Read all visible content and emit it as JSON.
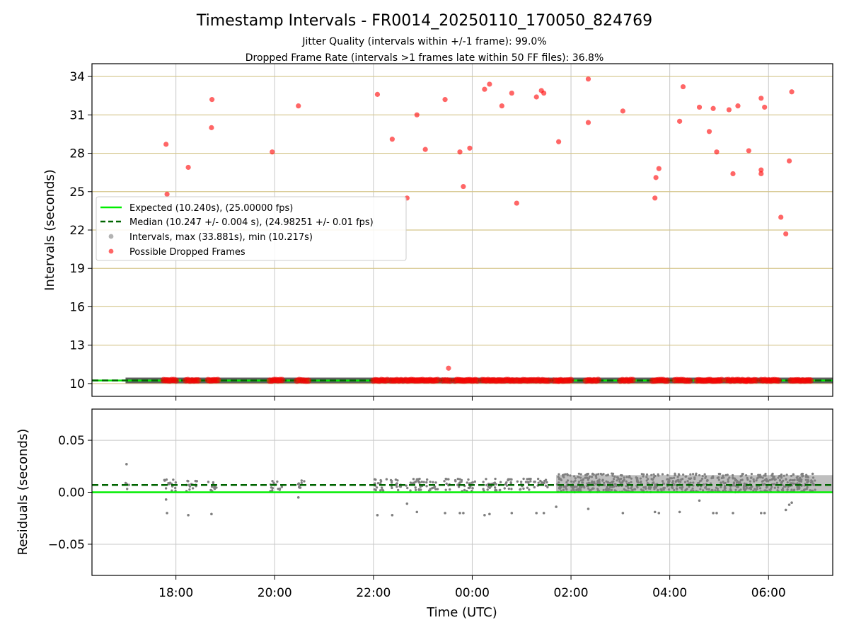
{
  "figure": {
    "title": "Timestamp Intervals - FR0014_20250110_170050_824769",
    "subtitle1": "Jitter Quality (intervals within +/-1 frame): 99.0%",
    "subtitle2": "Dropped Frame Rate (intervals >1 frames late within 50 FF files): 36.8%"
  },
  "chart_data": [
    {
      "type": "scatter",
      "panel": "intervals",
      "ylabel": "Intervals (seconds)",
      "xlabel": "",
      "x_unit": "hours (UTC), continuing past midnight",
      "xlim": [
        16.3,
        31.3
      ],
      "ylim": [
        9.0,
        35.0
      ],
      "yticks": [
        10,
        13,
        16,
        19,
        22,
        25,
        28,
        31,
        34
      ],
      "yticks_labels": [
        "10",
        "13",
        "16",
        "19",
        "22",
        "25",
        "28",
        "31",
        "34"
      ],
      "xticks": [
        18,
        20,
        22,
        24,
        26,
        28,
        30
      ],
      "grid": true,
      "colors": {
        "expected": "#00ee00",
        "median": "#006400",
        "intervals": "#808080",
        "dropped": "#ff0000"
      },
      "legend": {
        "placement": "center-left",
        "entries": [
          "Expected (10.240s), (25.00000 fps)",
          "Median (10.247 +/- 0.004 s), (24.98251 +/- 0.01 fps)",
          "Intervals, max (33.881s), min (10.217s)",
          "Possible Dropped Frames"
        ]
      },
      "expected_line": 10.24,
      "median_line": 10.247,
      "interval_band": {
        "x_start": 16.98,
        "x_end": 31.3,
        "y": 10.247
      },
      "dropped_clusters": [
        [
          17.75,
          18.0
        ],
        [
          18.2,
          18.45
        ],
        [
          18.65,
          18.85
        ],
        [
          19.9,
          20.15
        ],
        [
          20.45,
          20.68
        ],
        [
          22.0,
          22.28
        ],
        [
          22.35,
          22.6
        ],
        [
          22.65,
          23.3
        ],
        [
          23.4,
          23.55
        ],
        [
          23.65,
          24.1
        ],
        [
          24.2,
          24.6
        ],
        [
          24.65,
          24.85
        ],
        [
          24.9,
          25.2
        ],
        [
          25.25,
          25.55
        ],
        [
          25.65,
          25.75
        ],
        [
          25.75,
          26.0
        ],
        [
          26.3,
          26.55
        ],
        [
          27.0,
          27.25
        ],
        [
          27.65,
          27.95
        ],
        [
          28.1,
          28.4
        ],
        [
          28.55,
          29.05
        ],
        [
          29.15,
          29.55
        ],
        [
          29.55,
          29.75
        ],
        [
          29.85,
          30.2
        ],
        [
          30.45,
          30.85
        ]
      ],
      "dropped_points": [
        [
          17.8,
          28.7
        ],
        [
          17.82,
          24.8
        ],
        [
          18.25,
          26.9
        ],
        [
          18.72,
          30.0
        ],
        [
          18.73,
          32.2
        ],
        [
          19.95,
          28.1
        ],
        [
          20.48,
          31.7
        ],
        [
          22.08,
          32.6
        ],
        [
          22.38,
          29.1
        ],
        [
          22.68,
          24.5
        ],
        [
          22.88,
          31.0
        ],
        [
          23.05,
          28.3
        ],
        [
          23.45,
          32.2
        ],
        [
          23.52,
          11.2
        ],
        [
          23.75,
          28.1
        ],
        [
          23.82,
          25.4
        ],
        [
          23.95,
          28.4
        ],
        [
          24.25,
          33.0
        ],
        [
          24.35,
          33.4
        ],
        [
          24.6,
          31.7
        ],
        [
          24.8,
          32.7
        ],
        [
          24.9,
          24.1
        ],
        [
          25.3,
          32.4
        ],
        [
          25.4,
          32.9
        ],
        [
          25.45,
          32.7
        ],
        [
          25.75,
          28.9
        ],
        [
          26.35,
          33.8
        ],
        [
          26.35,
          30.4
        ],
        [
          27.05,
          31.3
        ],
        [
          27.7,
          24.5
        ],
        [
          27.72,
          26.1
        ],
        [
          27.78,
          26.8
        ],
        [
          28.2,
          30.5
        ],
        [
          28.27,
          33.2
        ],
        [
          28.6,
          31.6
        ],
        [
          28.8,
          29.7
        ],
        [
          28.88,
          31.5
        ],
        [
          28.95,
          28.1
        ],
        [
          29.2,
          31.4
        ],
        [
          29.28,
          26.4
        ],
        [
          29.38,
          31.7
        ],
        [
          29.6,
          28.2
        ],
        [
          29.85,
          32.3
        ],
        [
          29.85,
          26.7
        ],
        [
          29.85,
          26.4
        ],
        [
          29.92,
          31.6
        ],
        [
          30.25,
          23.0
        ],
        [
          30.35,
          21.7
        ],
        [
          30.42,
          27.4
        ],
        [
          30.47,
          32.8
        ]
      ]
    },
    {
      "type": "scatter",
      "panel": "residuals",
      "ylabel": "Residuals (seconds)",
      "xlabel": "Time (UTC)",
      "xlim": [
        16.3,
        31.3
      ],
      "ylim": [
        -0.08,
        0.08
      ],
      "yticks": [
        -0.05,
        0.0,
        0.05
      ],
      "yticks_labels": [
        "−0.05",
        "0.00",
        "0.05"
      ],
      "xticks": [
        18,
        20,
        22,
        24,
        26,
        28,
        30
      ],
      "xticks_labels": [
        "18:00",
        "20:00",
        "22:00",
        "00:00",
        "02:00",
        "04:00",
        "06:00"
      ],
      "grid": true,
      "colors": {
        "expected": "#00ee00",
        "median": "#006400",
        "residuals": "#808080"
      },
      "expected_line": 0.0,
      "median_line": 0.007,
      "dense_region": {
        "x_start": 25.7,
        "x_end": 31.3,
        "y_low": 0.0,
        "y_high": 0.018
      },
      "sparse_clusters": [
        [
          16.98,
          17.05
        ],
        [
          17.75,
          18.0
        ],
        [
          18.2,
          18.45
        ],
        [
          18.65,
          18.85
        ],
        [
          19.9,
          20.15
        ],
        [
          20.45,
          20.6
        ],
        [
          22.0,
          22.28
        ],
        [
          22.35,
          22.6
        ],
        [
          22.65,
          23.3
        ],
        [
          23.4,
          23.55
        ],
        [
          23.65,
          24.1
        ],
        [
          24.2,
          24.6
        ],
        [
          24.65,
          24.85
        ],
        [
          24.9,
          25.2
        ],
        [
          25.25,
          25.55
        ]
      ],
      "outliers": [
        [
          17.0,
          0.027
        ],
        [
          17.8,
          -0.007
        ],
        [
          17.82,
          -0.02
        ],
        [
          18.25,
          -0.022
        ],
        [
          18.72,
          -0.021
        ],
        [
          20.48,
          -0.005
        ],
        [
          22.08,
          -0.022
        ],
        [
          22.38,
          -0.022
        ],
        [
          22.68,
          -0.011
        ],
        [
          22.88,
          -0.019
        ],
        [
          23.45,
          -0.02
        ],
        [
          23.75,
          -0.02
        ],
        [
          23.82,
          -0.02
        ],
        [
          24.25,
          -0.022
        ],
        [
          24.35,
          -0.021
        ],
        [
          24.8,
          -0.02
        ],
        [
          25.3,
          -0.02
        ],
        [
          25.45,
          -0.02
        ],
        [
          25.7,
          -0.014
        ],
        [
          26.35,
          -0.016
        ],
        [
          27.05,
          -0.02
        ],
        [
          27.7,
          -0.019
        ],
        [
          27.78,
          -0.02
        ],
        [
          28.2,
          -0.019
        ],
        [
          28.6,
          -0.008
        ],
        [
          28.88,
          -0.02
        ],
        [
          28.95,
          -0.02
        ],
        [
          29.28,
          -0.02
        ],
        [
          29.85,
          -0.02
        ],
        [
          29.92,
          -0.02
        ],
        [
          30.35,
          -0.017
        ],
        [
          30.42,
          -0.012
        ],
        [
          30.47,
          -0.01
        ]
      ]
    }
  ]
}
